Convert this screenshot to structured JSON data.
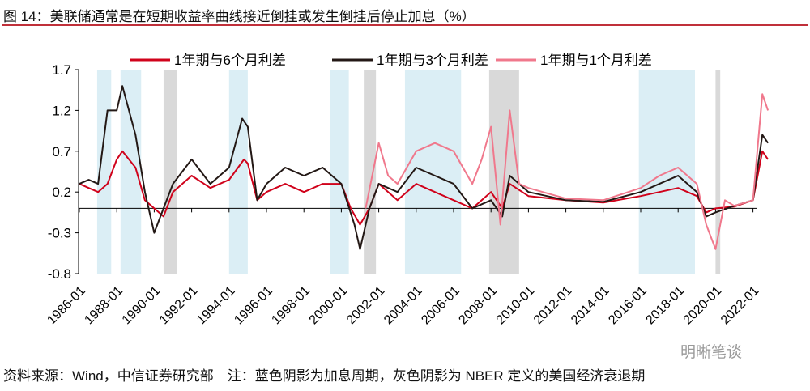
{
  "title": "图 14：美联储通常是在短期收益率曲线接近倒挂或发生倒挂后停止加息（%）",
  "note": "资料来源：Wind，中信证券研究部　注：蓝色阴影为加息周期，灰色阴影为 NBER 定义的美国经济衰退期",
  "watermark": "明晰笔谈",
  "chart_data": {
    "type": "line",
    "ylim": [
      -0.8,
      1.7
    ],
    "yticks": [
      -0.8,
      -0.3,
      0.2,
      0.7,
      1.2,
      1.7
    ],
    "ytick_labels": [
      "-0.8",
      "-0.3",
      "0.2",
      "0.7",
      "1.2",
      "1.7"
    ],
    "xlim": [
      1985.95,
      2022.9
    ],
    "xticks": [
      "1986-01",
      "1988-01",
      "1990-01",
      "1992-01",
      "1994-01",
      "1996-01",
      "1998-01",
      "2000-01",
      "2002-01",
      "2004-01",
      "2006-01",
      "2008-01",
      "2010-01",
      "2012-01",
      "2014-01",
      "2016-01",
      "2018-01",
      "2020-01",
      "2022-01"
    ],
    "legend_position": "top",
    "shading": {
      "hike_cycles": {
        "color": "#dbeef5",
        "ranges": [
          [
            1986.95,
            1987.7
          ],
          [
            1988.2,
            1989.3
          ],
          [
            1994.0,
            1995.0
          ],
          [
            1999.4,
            2000.4
          ],
          [
            2003.4,
            2006.4
          ],
          [
            2015.9,
            2018.9
          ]
        ]
      },
      "recessions": {
        "color": "#d9d9d9",
        "ranges": [
          [
            1990.5,
            1991.2
          ],
          [
            2001.2,
            2001.85
          ],
          [
            2007.9,
            2009.5
          ],
          [
            2020.0,
            2020.25
          ]
        ]
      }
    },
    "series": [
      {
        "name": "1年期与6个月利差",
        "color": "#d0021b",
        "x": [
          1986,
          1986.5,
          1987,
          1987.5,
          1988,
          1988.3,
          1989,
          1989.5,
          1990,
          1990.5,
          1991,
          1992,
          1993,
          1994,
          1994.8,
          1995,
          1995.5,
          1996,
          1997,
          1998,
          1999,
          2000,
          2000.5,
          2001,
          2001.5,
          2002,
          2003,
          2004,
          2005,
          2006,
          2007,
          2008,
          2008.6,
          2009,
          2010,
          2012,
          2014,
          2016,
          2017,
          2018,
          2019,
          2019.5,
          2020,
          2021,
          2022,
          2022.5,
          2022.8
        ],
        "y": [
          0.3,
          0.25,
          0.2,
          0.3,
          0.6,
          0.7,
          0.5,
          0.1,
          0.0,
          -0.1,
          0.2,
          0.4,
          0.25,
          0.35,
          0.6,
          0.55,
          0.1,
          0.2,
          0.3,
          0.2,
          0.3,
          0.3,
          0.0,
          -0.2,
          0.0,
          0.3,
          0.1,
          0.3,
          0.2,
          0.1,
          0.0,
          0.2,
          0.0,
          0.3,
          0.15,
          0.1,
          0.07,
          0.15,
          0.2,
          0.25,
          0.15,
          -0.05,
          0.0,
          0.02,
          0.1,
          0.7,
          0.6
        ]
      },
      {
        "name": "1年期与3个月利差",
        "color": "#231815",
        "x": [
          1986,
          1986.5,
          1987,
          1987.5,
          1988,
          1988.3,
          1989,
          1989.5,
          1990,
          1990.5,
          1991,
          1992,
          1993,
          1994,
          1994.7,
          1995,
          1995.5,
          1996,
          1997,
          1998,
          1999,
          2000,
          2000.7,
          2001,
          2001.5,
          2002,
          2003,
          2004,
          2005,
          2006,
          2007,
          2008,
          2008.6,
          2009,
          2010,
          2012,
          2014,
          2016,
          2017,
          2018,
          2019,
          2019.5,
          2020,
          2021,
          2022,
          2022.5,
          2022.8
        ],
        "y": [
          0.3,
          0.35,
          0.3,
          1.2,
          1.2,
          1.5,
          0.9,
          0.2,
          -0.3,
          0.0,
          0.3,
          0.6,
          0.3,
          0.5,
          1.1,
          1.0,
          0.1,
          0.3,
          0.5,
          0.4,
          0.5,
          0.3,
          -0.2,
          -0.5,
          0.0,
          0.3,
          0.2,
          0.5,
          0.4,
          0.3,
          0.0,
          0.1,
          -0.1,
          0.4,
          0.2,
          0.1,
          0.08,
          0.2,
          0.3,
          0.4,
          0.2,
          -0.1,
          -0.05,
          0.03,
          0.1,
          0.9,
          0.8
        ]
      },
      {
        "name": "1年期与1个月利差",
        "color": "#f0788c",
        "x": [
          2001.3,
          2002,
          2002.5,
          2003,
          2004,
          2005,
          2006,
          2007,
          2007.5,
          2008,
          2008.5,
          2009,
          2009.5,
          2010,
          2012,
          2014,
          2016,
          2017,
          2018,
          2019,
          2019.5,
          2020,
          2020.5,
          2021,
          2022,
          2022.5,
          2022.8
        ],
        "y": [
          0.0,
          0.8,
          0.4,
          0.3,
          0.7,
          0.8,
          0.7,
          0.3,
          0.6,
          1.0,
          -0.2,
          1.2,
          0.3,
          0.25,
          0.12,
          0.1,
          0.25,
          0.4,
          0.5,
          0.3,
          -0.2,
          -0.5,
          0.1,
          0.03,
          0.1,
          1.4,
          1.2
        ]
      }
    ]
  }
}
